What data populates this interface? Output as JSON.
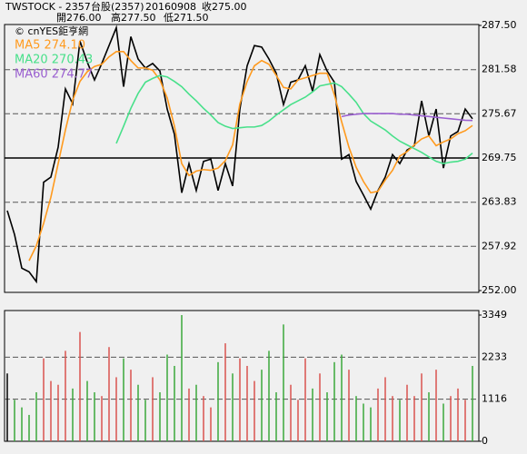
{
  "header": {
    "title": "TWSTOCK - 2357",
    "symbol": "台股(2357)",
    "date": "20160908",
    "close": "收275.00",
    "open": "開276.00",
    "high": "高277.50",
    "low": "低271.50",
    "watermark": "© cnYES鉅亨網"
  },
  "chart_data": [
    {
      "type": "line",
      "ylim": [
        252,
        287.5
      ],
      "yticks": [
        {
          "value": 287.5,
          "label": "287.50"
        },
        281.58,
        275.67,
        269.75,
        263.83,
        257.92,
        {
          "value": 252,
          "label": "252.00"
        }
      ],
      "grid": true,
      "series": [
        {
          "color": "#000000",
          "values": [
            262.7,
            259.5,
            255.0,
            254.5,
            253.2,
            266.5,
            267.2,
            271.2,
            279.0,
            277.0,
            285.4,
            282.6,
            280.2,
            282.4,
            284.8,
            287.2,
            279.3,
            286.0,
            283.0,
            281.8,
            282.4,
            281.4,
            276.3,
            272.9,
            265.1,
            269.0,
            265.4,
            269.3,
            269.6,
            265.4,
            269.0,
            266.0,
            276.3,
            282.1,
            284.8,
            284.6,
            283.0,
            281.1,
            276.9,
            279.9,
            280.2,
            282.1,
            278.7,
            283.6,
            281.4,
            279.9,
            269.6,
            270.2,
            266.6,
            264.8,
            262.9,
            265.4,
            267.2,
            270.2,
            269.0,
            270.8,
            271.4,
            277.4,
            272.7,
            276.3,
            268.4,
            272.7,
            273.3,
            276.3,
            275.0
          ]
        },
        {
          "name": "MA5 274.10",
          "color": "#ff9a1e",
          "values": [
            null,
            null,
            null,
            256.0,
            258.0,
            261.0,
            264.5,
            269.0,
            273.5,
            277.5,
            280.0,
            281.3,
            282.0,
            282.3,
            283.3,
            284.0,
            284.0,
            282.8,
            281.8,
            281.8,
            281.5,
            280.2,
            277.8,
            274.0,
            269.0,
            267.4,
            268.0,
            268.2,
            268.1,
            268.4,
            269.4,
            271.5,
            277.0,
            280.0,
            282.1,
            282.8,
            282.3,
            280.8,
            279.2,
            279.0,
            280.2,
            280.5,
            280.8,
            281.1,
            281.1,
            278.2,
            274.6,
            271.2,
            268.5,
            266.6,
            265.1,
            265.3,
            266.8,
            268.1,
            270.0,
            270.6,
            271.5,
            272.3,
            272.7,
            271.4,
            271.9,
            272.3,
            273.0,
            273.4,
            274.1
          ]
        },
        {
          "name": "MA20 270.43",
          "color": "#48e08a",
          "values": [
            null,
            null,
            null,
            null,
            null,
            null,
            null,
            null,
            null,
            null,
            null,
            null,
            null,
            null,
            null,
            271.7,
            274.0,
            276.4,
            278.4,
            279.9,
            280.4,
            280.8,
            280.6,
            280.0,
            279.3,
            278.3,
            277.4,
            276.4,
            275.5,
            274.5,
            274.0,
            273.7,
            273.8,
            273.9,
            273.9,
            274.1,
            274.7,
            275.5,
            276.2,
            276.9,
            277.4,
            277.9,
            278.6,
            279.4,
            279.6,
            279.8,
            279.3,
            278.3,
            277.2,
            275.7,
            274.7,
            274.1,
            273.5,
            272.7,
            272.0,
            271.5,
            271.0,
            270.5,
            269.9,
            269.3,
            269.0,
            269.2,
            269.3,
            269.6,
            270.4
          ]
        },
        {
          "name": "MA60 274.77",
          "color": "#9a5fd0",
          "values": [
            null,
            null,
            null,
            null,
            null,
            null,
            null,
            null,
            null,
            null,
            null,
            null,
            null,
            null,
            null,
            null,
            null,
            null,
            null,
            null,
            null,
            null,
            null,
            null,
            null,
            null,
            null,
            null,
            null,
            null,
            null,
            null,
            null,
            null,
            null,
            null,
            null,
            null,
            null,
            null,
            null,
            null,
            null,
            null,
            null,
            null,
            275.3,
            275.5,
            275.6,
            275.7,
            275.7,
            275.7,
            275.7,
            275.7,
            275.6,
            275.6,
            275.5,
            275.4,
            275.3,
            275.2,
            275.1,
            275.0,
            274.9,
            274.8,
            274.77
          ]
        }
      ]
    },
    {
      "type": "bar",
      "ylim": [
        0,
        3349
      ],
      "yticks": [
        3349,
        2233,
        1116,
        0
      ],
      "grid": true,
      "colors": {
        "up": "#d9534f",
        "down": "#3aa83a",
        "flat": "#000000"
      },
      "values": [
        1800,
        1100,
        900,
        700,
        1300,
        2200,
        1600,
        1500,
        2400,
        1400,
        2900,
        1600,
        1300,
        1200,
        2500,
        1700,
        2200,
        1900,
        1500,
        1100,
        1700,
        1300,
        2300,
        2000,
        3349,
        1400,
        1500,
        1200,
        900,
        2100,
        2600,
        1800,
        2200,
        2000,
        1600,
        1900,
        2400,
        1300,
        3100,
        1500,
        1100,
        2200,
        1400,
        1800,
        1300,
        2100,
        2300,
        1900,
        1200,
        1000,
        900,
        1400,
        1700,
        1200,
        1100,
        1500,
        1200,
        1800,
        1300,
        1900,
        1000,
        1200,
        1400,
        1100,
        2000
      ]
    }
  ]
}
